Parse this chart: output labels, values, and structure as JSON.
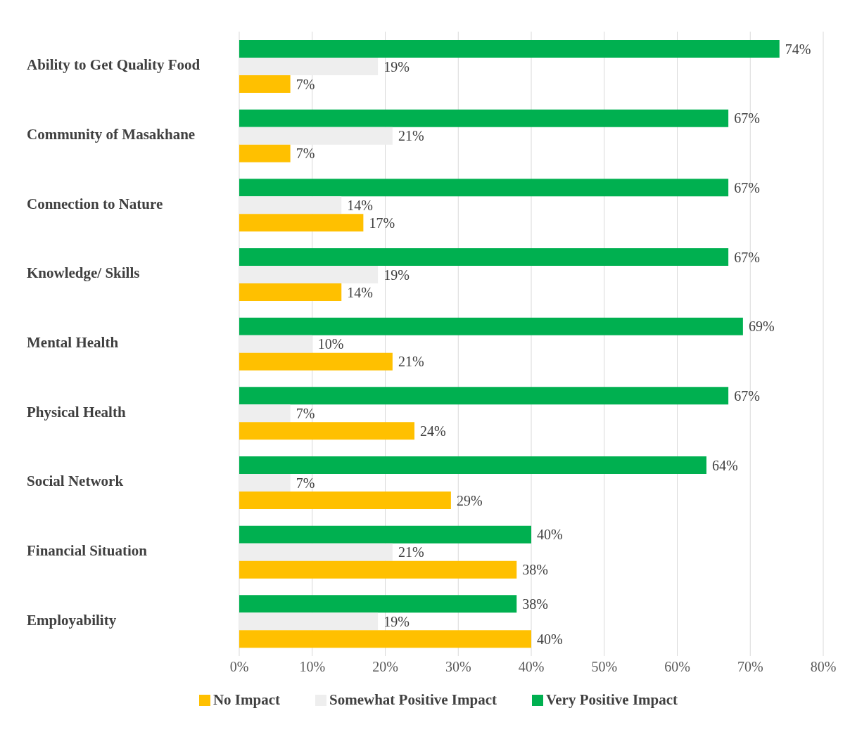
{
  "chart_data": {
    "type": "bar",
    "orientation": "horizontal",
    "categories": [
      "Ability to Get Quality Food",
      "Community of Masakhane",
      "Connection to Nature",
      "Knowledge/ Skills",
      "Mental Health",
      "Physical Health",
      "Social Network",
      "Financial Situation",
      "Employability"
    ],
    "series": [
      {
        "name": "No Impact",
        "color": "#ffc000",
        "values": [
          7,
          7,
          17,
          14,
          21,
          24,
          29,
          38,
          40
        ],
        "value_labels": [
          "7%",
          "7%",
          "17%",
          "14%",
          "21%",
          "24%",
          "29%",
          "38%",
          "40%"
        ]
      },
      {
        "name": "Somewhat Positive Impact",
        "color": "#eeeeee",
        "values": [
          19,
          21,
          14,
          19,
          10,
          7,
          7,
          21,
          19
        ],
        "value_labels": [
          "19%",
          "21%",
          "14%",
          "19%",
          "10%",
          "7%",
          "7%",
          "21%",
          "19%"
        ]
      },
      {
        "name": "Very Positive Impact",
        "color": "#00b050",
        "values": [
          74,
          67,
          67,
          67,
          69,
          67,
          64,
          40,
          38
        ],
        "value_labels": [
          "74%",
          "67%",
          "67%",
          "67%",
          "69%",
          "67%",
          "64%",
          "40%",
          "38%"
        ]
      }
    ],
    "xlim": [
      0,
      80
    ],
    "xticks": [
      {
        "value": 0,
        "label": "0%"
      },
      {
        "value": 10,
        "label": "10%"
      },
      {
        "value": 20,
        "label": "20%"
      },
      {
        "value": 30,
        "label": "30%"
      },
      {
        "value": 40,
        "label": "40%"
      },
      {
        "value": 50,
        "label": "50%"
      },
      {
        "value": 60,
        "label": "60%"
      },
      {
        "value": 70,
        "label": "70%"
      },
      {
        "value": 80,
        "label": "80%"
      }
    ],
    "grid": "x",
    "legend": "bottom"
  }
}
